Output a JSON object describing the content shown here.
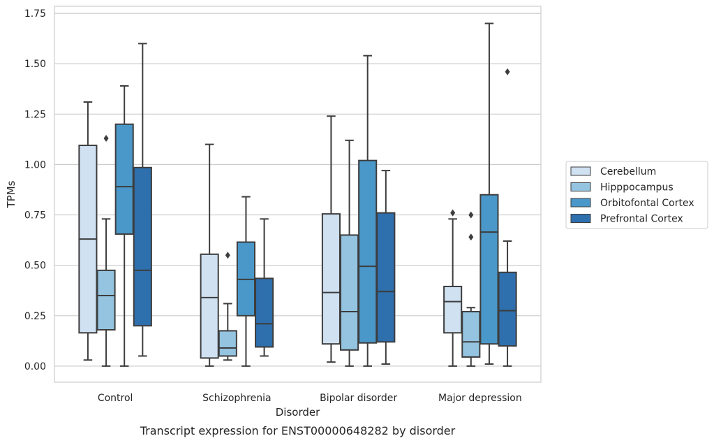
{
  "chart_data": {
    "type": "box",
    "caption": "Transcript expression for ENST00000648282 by disorder",
    "xlabel": "Disorder",
    "ylabel": "TPMs",
    "ylim": [
      -0.08,
      1.785
    ],
    "yticks": [
      0.0,
      0.25,
      0.5,
      0.75,
      1.0,
      1.25,
      1.5,
      1.75
    ],
    "ytick_labels": [
      "0.00",
      "0.25",
      "0.50",
      "0.75",
      "1.00",
      "1.25",
      "1.50",
      "1.75"
    ],
    "categories": [
      "Control",
      "Schizophrenia",
      "Bipolar disorder",
      "Major depression"
    ],
    "grid": "horizontal",
    "legend_position": "right",
    "series": [
      {
        "name": "Cerebellum",
        "color": "#d0e1f2",
        "boxes": [
          {
            "whislo": 0.03,
            "q1": 0.165,
            "med": 0.63,
            "q3": 1.095,
            "whishi": 1.31,
            "fliers": []
          },
          {
            "whislo": 0.0,
            "q1": 0.04,
            "med": 0.34,
            "q3": 0.555,
            "whishi": 1.1,
            "fliers": []
          },
          {
            "whislo": 0.02,
            "q1": 0.11,
            "med": 0.365,
            "q3": 0.755,
            "whishi": 1.24,
            "fliers": []
          },
          {
            "whislo": 0.0,
            "q1": 0.165,
            "med": 0.32,
            "q3": 0.395,
            "whishi": 0.73,
            "fliers": [
              0.76
            ]
          }
        ]
      },
      {
        "name": "Hipppocampus",
        "color": "#94c4df",
        "boxes": [
          {
            "whislo": 0.0,
            "q1": 0.18,
            "med": 0.35,
            "q3": 0.475,
            "whishi": 0.73,
            "fliers": [
              1.13
            ]
          },
          {
            "whislo": 0.03,
            "q1": 0.05,
            "med": 0.09,
            "q3": 0.175,
            "whishi": 0.31,
            "fliers": [
              0.55
            ]
          },
          {
            "whislo": 0.0,
            "q1": 0.08,
            "med": 0.27,
            "q3": 0.65,
            "whishi": 1.12,
            "fliers": []
          },
          {
            "whislo": 0.0,
            "q1": 0.045,
            "med": 0.12,
            "q3": 0.27,
            "whishi": 0.29,
            "fliers": [
              0.64,
              0.75
            ]
          }
        ]
      },
      {
        "name": "Orbitofontal Cortex",
        "color": "#4a98c9",
        "boxes": [
          {
            "whislo": 0.0,
            "q1": 0.655,
            "med": 0.89,
            "q3": 1.2,
            "whishi": 1.39,
            "fliers": []
          },
          {
            "whislo": 0.0,
            "q1": 0.25,
            "med": 0.43,
            "q3": 0.615,
            "whishi": 0.84,
            "fliers": []
          },
          {
            "whislo": 0.0,
            "q1": 0.115,
            "med": 0.495,
            "q3": 1.02,
            "whishi": 1.54,
            "fliers": []
          },
          {
            "whislo": 0.01,
            "q1": 0.11,
            "med": 0.665,
            "q3": 0.85,
            "whishi": 1.7,
            "fliers": []
          }
        ]
      },
      {
        "name": "Prefrontal Cortex",
        "color": "#2e6fad",
        "boxes": [
          {
            "whislo": 0.05,
            "q1": 0.2,
            "med": 0.475,
            "q3": 0.985,
            "whishi": 1.6,
            "fliers": []
          },
          {
            "whislo": 0.05,
            "q1": 0.095,
            "med": 0.21,
            "q3": 0.435,
            "whishi": 0.73,
            "fliers": []
          },
          {
            "whislo": 0.01,
            "q1": 0.12,
            "med": 0.37,
            "q3": 0.76,
            "whishi": 0.97,
            "fliers": []
          },
          {
            "whislo": 0.0,
            "q1": 0.1,
            "med": 0.275,
            "q3": 0.465,
            "whishi": 0.62,
            "fliers": [
              1.46
            ]
          }
        ]
      }
    ]
  }
}
